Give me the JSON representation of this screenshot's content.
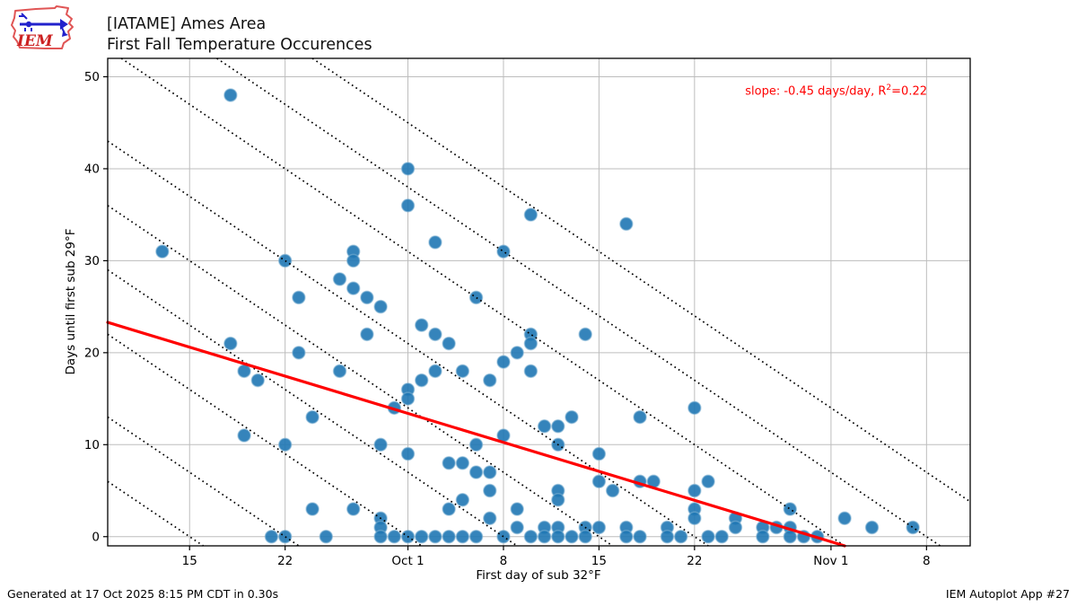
{
  "header": {
    "title_line1": "[IATAME] Ames Area",
    "title_line2": "First Fall Temperature Occurences",
    "logo_text": "IEM"
  },
  "footer": {
    "generated": "Generated at 17 Oct 2025 8:15 PM CDT in 0.30s",
    "app": "IEM Autoplot App #27"
  },
  "chart_data": {
    "type": "scatter",
    "title": "[IATAME] Ames Area — First Fall Temperature Occurences",
    "xlabel": "First day of sub 32°F",
    "ylabel": "Days until first sub 29°F",
    "x_axis_note": "x stored as day offset, 0 = Sep 9",
    "xlim_days": [
      0,
      63.2
    ],
    "ylim": [
      -1,
      52
    ],
    "x_ticks": [
      {
        "d": 6,
        "label": "15"
      },
      {
        "d": 13,
        "label": "22"
      },
      {
        "d": 22,
        "label": "Oct 1"
      },
      {
        "d": 29,
        "label": "8"
      },
      {
        "d": 36,
        "label": "15"
      },
      {
        "d": 43,
        "label": "22"
      },
      {
        "d": 53,
        "label": "Nov 1"
      },
      {
        "d": 60,
        "label": "8"
      }
    ],
    "y_ticks": [
      0,
      10,
      20,
      30,
      40,
      50
    ],
    "grid": true,
    "grid_color": "#bdbdbd",
    "point_color": "#1f77b4",
    "trend": {
      "color": "#ff0000",
      "slope": -0.45,
      "intercept": 23.3,
      "r2": 0.22
    },
    "annotation": {
      "pre": "slope: -0.45 days/day, R",
      "sup": "2",
      "post": "=0.22",
      "color": "#ff0000"
    },
    "guide_lines": {
      "style": "dotted",
      "color": "#000000",
      "slope_days_per_day": -1,
      "zero_crossing_day_offsets": [
        6,
        13,
        22,
        29,
        36,
        43,
        53,
        60,
        67
      ],
      "zero_crossing_dates": [
        "Sep 15",
        "Sep 22",
        "Oct 1",
        "Oct 8",
        "Oct 15",
        "Oct 22",
        "Nov 1",
        "Nov 8",
        "Nov 15"
      ]
    },
    "points_format": [
      "date_of_first_sub_32F",
      "day_offset_from_sep9",
      "days_until_first_sub_29F"
    ],
    "points": [
      [
        "Sep 13",
        4,
        31
      ],
      [
        "Sep 18",
        9,
        48
      ],
      [
        "Sep 18",
        9,
        21
      ],
      [
        "Sep 19",
        10,
        18
      ],
      [
        "Sep 19",
        10,
        11
      ],
      [
        "Sep 20",
        11,
        17
      ],
      [
        "Sep 21",
        12,
        0
      ],
      [
        "Sep 22",
        13,
        30
      ],
      [
        "Sep 22",
        13,
        10
      ],
      [
        "Sep 22",
        13,
        0
      ],
      [
        "Sep 23",
        14,
        26
      ],
      [
        "Sep 23",
        14,
        20
      ],
      [
        "Sep 24",
        15,
        13
      ],
      [
        "Sep 24",
        15,
        3
      ],
      [
        "Sep 25",
        16,
        0
      ],
      [
        "Sep 26",
        17,
        28
      ],
      [
        "Sep 26",
        17,
        18
      ],
      [
        "Sep 27",
        18,
        31
      ],
      [
        "Sep 27",
        18,
        30
      ],
      [
        "Sep 27",
        18,
        27
      ],
      [
        "Sep 27",
        18,
        3
      ],
      [
        "Sep 28",
        19,
        26
      ],
      [
        "Sep 28",
        19,
        22
      ],
      [
        "Sep 29",
        20,
        25
      ],
      [
        "Sep 29",
        20,
        10
      ],
      [
        "Sep 29",
        20,
        2
      ],
      [
        "Sep 29",
        20,
        1
      ],
      [
        "Sep 29",
        20,
        0
      ],
      [
        "Sep 30",
        21,
        14
      ],
      [
        "Sep 30",
        21,
        0
      ],
      [
        "Oct 1",
        22,
        40
      ],
      [
        "Oct 1",
        22,
        36
      ],
      [
        "Oct 1",
        22,
        16
      ],
      [
        "Oct 1",
        22,
        15
      ],
      [
        "Oct 1",
        22,
        9
      ],
      [
        "Oct 1",
        22,
        0
      ],
      [
        "Oct 2",
        23,
        23
      ],
      [
        "Oct 2",
        23,
        17
      ],
      [
        "Oct 2",
        23,
        0
      ],
      [
        "Oct 3",
        24,
        32
      ],
      [
        "Oct 3",
        24,
        22
      ],
      [
        "Oct 3",
        24,
        18
      ],
      [
        "Oct 3",
        24,
        0
      ],
      [
        "Oct 4",
        25,
        21
      ],
      [
        "Oct 4",
        25,
        8
      ],
      [
        "Oct 4",
        25,
        3
      ],
      [
        "Oct 4",
        25,
        0
      ],
      [
        "Oct 5",
        26,
        18
      ],
      [
        "Oct 5",
        26,
        8
      ],
      [
        "Oct 5",
        26,
        4
      ],
      [
        "Oct 5",
        26,
        0
      ],
      [
        "Oct 6",
        27,
        26
      ],
      [
        "Oct 6",
        27,
        10
      ],
      [
        "Oct 6",
        27,
        7
      ],
      [
        "Oct 6",
        27,
        0
      ],
      [
        "Oct 7",
        28,
        17
      ],
      [
        "Oct 7",
        28,
        7
      ],
      [
        "Oct 7",
        28,
        5
      ],
      [
        "Oct 7",
        28,
        2
      ],
      [
        "Oct 8",
        29,
        31
      ],
      [
        "Oct 8",
        29,
        19
      ],
      [
        "Oct 8",
        29,
        11
      ],
      [
        "Oct 8",
        29,
        0
      ],
      [
        "Oct 9",
        30,
        20
      ],
      [
        "Oct 9",
        30,
        3
      ],
      [
        "Oct 9",
        30,
        1
      ],
      [
        "Oct 10",
        31,
        35
      ],
      [
        "Oct 10",
        31,
        22
      ],
      [
        "Oct 10",
        31,
        21
      ],
      [
        "Oct 10",
        31,
        18
      ],
      [
        "Oct 10",
        31,
        0
      ],
      [
        "Oct 11",
        32,
        12
      ],
      [
        "Oct 11",
        32,
        1
      ],
      [
        "Oct 11",
        32,
        0
      ],
      [
        "Oct 12",
        33,
        12
      ],
      [
        "Oct 12",
        33,
        10
      ],
      [
        "Oct 12",
        33,
        5
      ],
      [
        "Oct 12",
        33,
        4
      ],
      [
        "Oct 12",
        33,
        1
      ],
      [
        "Oct 12",
        33,
        0
      ],
      [
        "Oct 13",
        34,
        13
      ],
      [
        "Oct 13",
        34,
        0
      ],
      [
        "Oct 14",
        35,
        22
      ],
      [
        "Oct 14",
        35,
        1
      ],
      [
        "Oct 14",
        35,
        0
      ],
      [
        "Oct 15",
        36,
        9
      ],
      [
        "Oct 15",
        36,
        6
      ],
      [
        "Oct 15",
        36,
        1
      ],
      [
        "Oct 16",
        37,
        5
      ],
      [
        "Oct 17",
        38,
        34
      ],
      [
        "Oct 17",
        38,
        1
      ],
      [
        "Oct 17",
        38,
        0
      ],
      [
        "Oct 18",
        39,
        13
      ],
      [
        "Oct 18",
        39,
        6
      ],
      [
        "Oct 18",
        39,
        0
      ],
      [
        "Oct 19",
        40,
        6
      ],
      [
        "Oct 20",
        41,
        1
      ],
      [
        "Oct 20",
        41,
        0
      ],
      [
        "Oct 21",
        42,
        0
      ],
      [
        "Oct 22",
        43,
        14
      ],
      [
        "Oct 22",
        43,
        5
      ],
      [
        "Oct 22",
        43,
        3
      ],
      [
        "Oct 22",
        43,
        2
      ],
      [
        "Oct 23",
        44,
        6
      ],
      [
        "Oct 23",
        44,
        0
      ],
      [
        "Oct 24",
        45,
        0
      ],
      [
        "Oct 25",
        46,
        2
      ],
      [
        "Oct 25",
        46,
        1
      ],
      [
        "Oct 27",
        48,
        1
      ],
      [
        "Oct 27",
        48,
        0
      ],
      [
        "Oct 28",
        49,
        1
      ],
      [
        "Oct 29",
        50,
        3
      ],
      [
        "Oct 29",
        50,
        1
      ],
      [
        "Oct 29",
        50,
        0
      ],
      [
        "Oct 30",
        51,
        0
      ],
      [
        "Oct 31",
        52,
        0
      ],
      [
        "Nov 2",
        54,
        2
      ],
      [
        "Nov 4",
        56,
        1
      ],
      [
        "Nov 7",
        59,
        1
      ]
    ]
  }
}
